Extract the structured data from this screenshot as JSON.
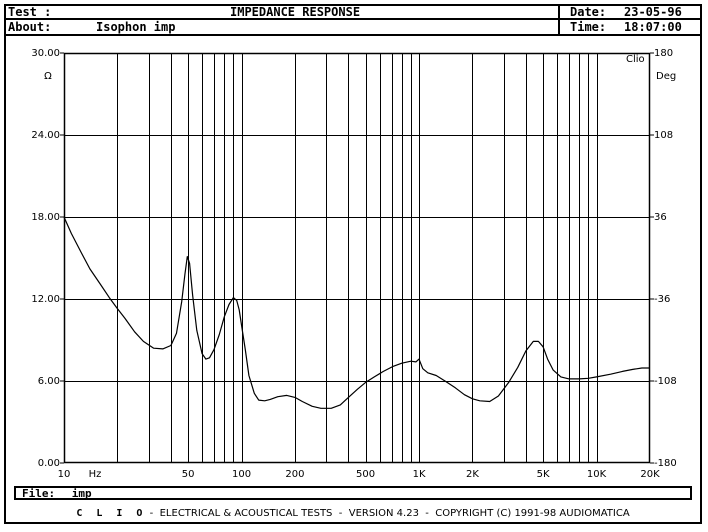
{
  "header": {
    "test_label": "Test :",
    "title": "IMPEDANCE RESPONSE",
    "date_label": "Date:",
    "date_value": "23-05-96",
    "about_label": "About:",
    "about_value": "Isophon imp",
    "time_label": "Time:",
    "time_value": "18:07:00"
  },
  "file": {
    "label": "File:",
    "value": "imp"
  },
  "footer": {
    "brand": "C L I O",
    "text": " -  ELECTRICAL & ACOUSTICAL TESTS  -  VERSION 4.23  -  COPYRIGHT (C) 1991-98 AUDIOMATICA"
  },
  "chart_data": {
    "type": "line",
    "title": "IMPEDANCE RESPONSE",
    "x_scale": "log",
    "xlim": [
      10,
      20000
    ],
    "ylim": [
      0,
      30
    ],
    "y2lim": [
      -180,
      180
    ],
    "ylabel": "Ω",
    "y2label": "Deg",
    "xunit": "Hz",
    "corner_label": "Clio",
    "grid": true,
    "x_tick_labels": [
      {
        "v": 10,
        "t": "10"
      },
      {
        "v": 50,
        "t": "50"
      },
      {
        "v": 100,
        "t": "100"
      },
      {
        "v": 200,
        "t": "200"
      },
      {
        "v": 500,
        "t": "500"
      },
      {
        "v": 1000,
        "t": "1K"
      },
      {
        "v": 2000,
        "t": "2K"
      },
      {
        "v": 5000,
        "t": "5K"
      },
      {
        "v": 10000,
        "t": "10K"
      },
      {
        "v": 20000,
        "t": "20K"
      }
    ],
    "y_tick_labels": [
      "0.00",
      "6.00",
      "12.00",
      "18.00",
      "24.00",
      "30.00"
    ],
    "y2_tick_labels": [
      "-180",
      "-108",
      "-36",
      "36",
      "108",
      "180"
    ],
    "series": [
      {
        "x": [
          10,
          11,
          12.5,
          14,
          16,
          18,
          20,
          22,
          25,
          28,
          32,
          36,
          40,
          43,
          46,
          48,
          49.5,
          51,
          53,
          56,
          60,
          63,
          66,
          70,
          75,
          80,
          85,
          90,
          94,
          97,
          100,
          105,
          110,
          118,
          125,
          135,
          145,
          160,
          180,
          200,
          220,
          250,
          280,
          320,
          360,
          400,
          450,
          500,
          560,
          630,
          710,
          800,
          900,
          960,
          1000,
          1050,
          1120,
          1250,
          1400,
          1600,
          1800,
          2000,
          2200,
          2500,
          2800,
          3200,
          3600,
          4000,
          4400,
          4700,
          5000,
          5300,
          5700,
          6300,
          7000,
          8000,
          9000,
          10000,
          12000,
          14000,
          16000,
          18000,
          20000
        ],
        "values": [
          18.0,
          16.8,
          15.4,
          14.2,
          13.1,
          12.1,
          11.3,
          10.6,
          9.6,
          8.9,
          8.4,
          8.35,
          8.6,
          9.5,
          11.8,
          13.8,
          15.1,
          14.6,
          12.3,
          9.7,
          8.0,
          7.6,
          7.7,
          8.3,
          9.4,
          10.7,
          11.6,
          12.1,
          11.9,
          11.2,
          10.1,
          8.3,
          6.4,
          5.1,
          4.6,
          4.55,
          4.65,
          4.85,
          4.95,
          4.8,
          4.5,
          4.15,
          4.0,
          4.0,
          4.25,
          4.8,
          5.4,
          5.9,
          6.3,
          6.7,
          7.05,
          7.3,
          7.45,
          7.4,
          7.6,
          6.9,
          6.6,
          6.4,
          6.0,
          5.5,
          5.0,
          4.7,
          4.55,
          4.5,
          4.9,
          5.9,
          7.0,
          8.2,
          8.9,
          8.9,
          8.5,
          7.6,
          6.8,
          6.3,
          6.15,
          6.15,
          6.2,
          6.3,
          6.5,
          6.7,
          6.85,
          6.95,
          6.95
        ]
      }
    ]
  }
}
